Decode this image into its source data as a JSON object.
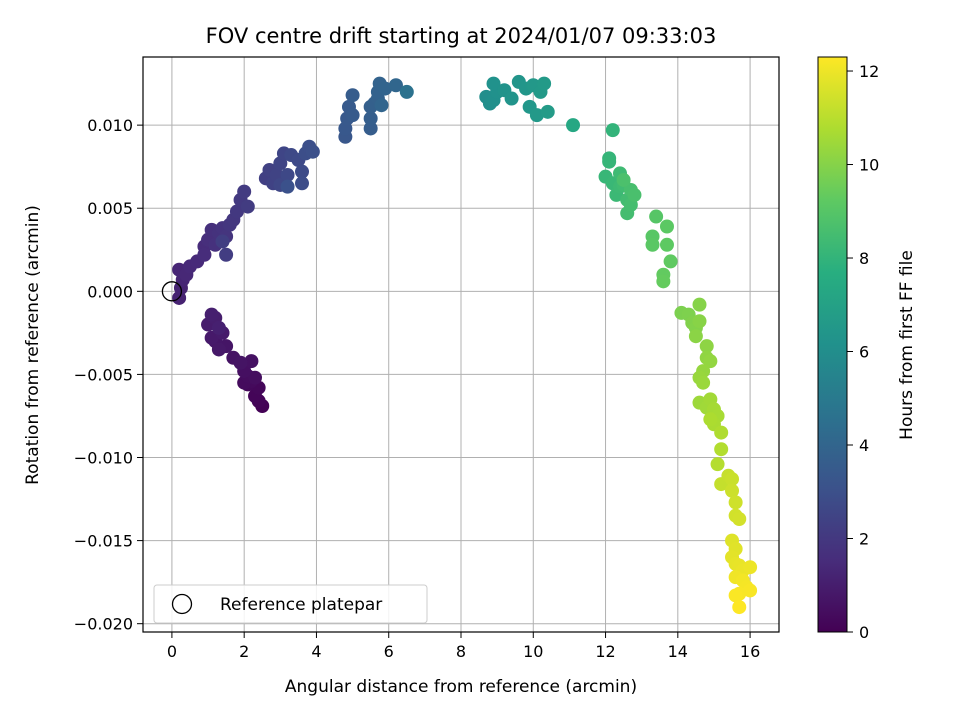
{
  "chart_data": {
    "type": "scatter",
    "title": "FOV centre drift starting at 2024/01/07 09:33:03",
    "xlabel": "Angular distance from reference (arcmin)",
    "ylabel": "Rotation from reference (arcmin)",
    "xlim": [
      -0.8,
      16.8
    ],
    "ylim": [
      -0.0205,
      0.0141
    ],
    "xticks": [
      0,
      2,
      4,
      6,
      8,
      10,
      12,
      14,
      16
    ],
    "xtick_labels": [
      "0",
      "2",
      "4",
      "6",
      "8",
      "10",
      "12",
      "14",
      "16"
    ],
    "yticks": [
      -0.02,
      -0.015,
      -0.01,
      -0.005,
      0.0,
      0.005,
      0.01
    ],
    "ytick_labels": [
      "−0.020",
      "−0.015",
      "−0.010",
      "−0.005",
      "0.000",
      "0.005",
      "0.010"
    ],
    "grid": true,
    "colormap": "viridis",
    "colorbar": {
      "label": "Hours from first FF file",
      "range": [
        0,
        12.3
      ],
      "ticks": [
        0,
        2,
        4,
        6,
        8,
        10,
        12
      ],
      "tick_labels": [
        "0",
        "2",
        "4",
        "6",
        "8",
        "10",
        "12"
      ]
    },
    "legend": {
      "position": "lower-left",
      "entries": [
        "Reference platepar"
      ]
    },
    "reference_point": {
      "x": 0.0,
      "y": 0.0
    },
    "points": [
      [
        2.5,
        -0.0069,
        0.05
      ],
      [
        2.4,
        -0.0066,
        0.1
      ],
      [
        2.3,
        -0.0063,
        0.15
      ],
      [
        2.4,
        -0.0058,
        0.2
      ],
      [
        2.1,
        -0.0056,
        0.25
      ],
      [
        2.2,
        -0.0054,
        0.3
      ],
      [
        2.0,
        -0.0055,
        0.35
      ],
      [
        2.1,
        -0.0051,
        0.4
      ],
      [
        2.3,
        -0.0052,
        0.45
      ],
      [
        2.0,
        -0.0048,
        0.5
      ],
      [
        2.2,
        -0.0042,
        0.55
      ],
      [
        1.7,
        -0.004,
        0.6
      ],
      [
        1.9,
        -0.0043,
        0.65
      ],
      [
        1.5,
        -0.0033,
        0.7
      ],
      [
        1.2,
        -0.003,
        0.75
      ],
      [
        1.3,
        -0.0035,
        0.8
      ],
      [
        1.1,
        -0.0028,
        0.85
      ],
      [
        1.4,
        -0.0025,
        0.9
      ],
      [
        1.0,
        -0.002,
        0.95
      ],
      [
        1.2,
        -0.0016,
        1.0
      ],
      [
        1.1,
        -0.0014,
        1.05
      ],
      [
        1.3,
        -0.0022,
        1.1
      ],
      [
        0.2,
        -0.0004,
        1.15
      ],
      [
        0.25,
        0.0002,
        1.2
      ],
      [
        0.3,
        0.0007,
        1.25
      ],
      [
        0.2,
        0.0013,
        1.3
      ],
      [
        0.4,
        0.001,
        1.35
      ],
      [
        0.5,
        0.0015,
        1.4
      ],
      [
        0.7,
        0.0018,
        1.45
      ],
      [
        0.9,
        0.0027,
        1.5
      ],
      [
        0.9,
        0.0022,
        1.55
      ],
      [
        1.0,
        0.0031,
        1.6
      ],
      [
        1.1,
        0.0037,
        1.65
      ],
      [
        1.2,
        0.0028,
        1.7
      ],
      [
        1.3,
        0.0035,
        1.75
      ],
      [
        1.4,
        0.0038,
        1.8
      ],
      [
        1.5,
        0.0033,
        1.85
      ],
      [
        1.6,
        0.004,
        1.9
      ],
      [
        1.7,
        0.0043,
        1.95
      ],
      [
        1.8,
        0.0048,
        2.0
      ],
      [
        1.9,
        0.0055,
        2.05
      ],
      [
        2.0,
        0.006,
        2.1
      ],
      [
        2.1,
        0.0051,
        2.15
      ],
      [
        1.5,
        0.0022,
        2.2
      ],
      [
        1.4,
        0.003,
        2.25
      ],
      [
        2.6,
        0.0068,
        2.3
      ],
      [
        2.7,
        0.0073,
        2.35
      ],
      [
        2.8,
        0.0065,
        2.4
      ],
      [
        2.9,
        0.007,
        2.45
      ],
      [
        3.0,
        0.0077,
        2.5
      ],
      [
        3.1,
        0.0083,
        2.55
      ],
      [
        3.0,
        0.0064,
        2.6
      ],
      [
        3.2,
        0.007,
        2.65
      ],
      [
        3.3,
        0.0082,
        2.7
      ],
      [
        3.5,
        0.0079,
        2.75
      ],
      [
        3.6,
        0.0072,
        2.8
      ],
      [
        3.6,
        0.0065,
        2.85
      ],
      [
        3.7,
        0.0083,
        2.9
      ],
      [
        3.8,
        0.0087,
        2.95
      ],
      [
        3.9,
        0.0084,
        3.0
      ],
      [
        3.2,
        0.0063,
        3.05
      ],
      [
        4.8,
        0.0093,
        3.3
      ],
      [
        4.8,
        0.0098,
        3.35
      ],
      [
        4.85,
        0.0104,
        3.4
      ],
      [
        4.9,
        0.0111,
        3.45
      ],
      [
        5.0,
        0.0106,
        3.5
      ],
      [
        5.0,
        0.0118,
        3.55
      ],
      [
        5.5,
        0.0098,
        3.6
      ],
      [
        5.5,
        0.0104,
        3.65
      ],
      [
        5.5,
        0.0111,
        3.7
      ],
      [
        5.6,
        0.0113,
        3.75
      ],
      [
        5.7,
        0.0116,
        3.8
      ],
      [
        5.7,
        0.012,
        3.85
      ],
      [
        5.75,
        0.0125,
        3.9
      ],
      [
        5.9,
        0.0122,
        3.95
      ],
      [
        5.8,
        0.0112,
        4.0
      ],
      [
        6.2,
        0.0124,
        4.05
      ],
      [
        6.5,
        0.012,
        4.6
      ],
      [
        8.7,
        0.0117,
        6.0
      ],
      [
        8.8,
        0.0113,
        6.05
      ],
      [
        8.9,
        0.0115,
        6.1
      ],
      [
        9.0,
        0.012,
        6.15
      ],
      [
        8.9,
        0.0125,
        6.2
      ],
      [
        9.2,
        0.0121,
        6.25
      ],
      [
        9.4,
        0.0116,
        6.3
      ],
      [
        9.6,
        0.0126,
        6.35
      ],
      [
        9.8,
        0.0122,
        6.4
      ],
      [
        9.9,
        0.0111,
        6.45
      ],
      [
        10.0,
        0.0124,
        6.5
      ],
      [
        10.1,
        0.0106,
        6.55
      ],
      [
        10.2,
        0.012,
        6.6
      ],
      [
        10.3,
        0.0125,
        6.65
      ],
      [
        10.4,
        0.0108,
        6.7
      ],
      [
        11.1,
        0.01,
        7.3
      ],
      [
        12.2,
        0.0097,
        8.0
      ],
      [
        12.1,
        0.008,
        8.05
      ],
      [
        12.1,
        0.0078,
        8.1
      ],
      [
        12.0,
        0.0069,
        8.15
      ],
      [
        12.2,
        0.0065,
        8.2
      ],
      [
        12.3,
        0.0058,
        8.25
      ],
      [
        12.4,
        0.0063,
        8.3
      ],
      [
        12.4,
        0.0071,
        8.35
      ],
      [
        12.5,
        0.0064,
        8.4
      ],
      [
        12.6,
        0.0055,
        8.45
      ],
      [
        12.6,
        0.0047,
        8.5
      ],
      [
        12.7,
        0.0052,
        8.55
      ],
      [
        12.7,
        0.0061,
        8.6
      ],
      [
        12.8,
        0.0058,
        8.65
      ],
      [
        12.5,
        0.0067,
        8.7
      ],
      [
        13.4,
        0.0045,
        9.0
      ],
      [
        13.3,
        0.0033,
        9.05
      ],
      [
        13.3,
        0.0028,
        9.1
      ],
      [
        13.7,
        0.0039,
        9.15
      ],
      [
        13.7,
        0.0028,
        9.2
      ],
      [
        13.8,
        0.0018,
        9.25
      ],
      [
        13.6,
        0.001,
        9.3
      ],
      [
        13.6,
        0.0006,
        9.35
      ],
      [
        14.1,
        -0.0013,
        9.8
      ],
      [
        14.3,
        -0.0014,
        9.85
      ],
      [
        14.4,
        -0.0019,
        9.9
      ],
      [
        14.5,
        -0.0022,
        9.95
      ],
      [
        14.6,
        -0.0008,
        10.0
      ],
      [
        14.6,
        -0.0018,
        10.05
      ],
      [
        14.5,
        -0.0027,
        10.1
      ],
      [
        14.8,
        -0.0033,
        10.15
      ],
      [
        14.8,
        -0.004,
        10.2
      ],
      [
        14.9,
        -0.0042,
        10.25
      ],
      [
        14.7,
        -0.0048,
        10.3
      ],
      [
        14.6,
        -0.0052,
        10.35
      ],
      [
        14.7,
        -0.0055,
        10.4
      ],
      [
        14.6,
        -0.0067,
        10.45
      ],
      [
        14.8,
        -0.007,
        10.5
      ],
      [
        14.9,
        -0.0065,
        10.55
      ],
      [
        15.0,
        -0.0071,
        10.6
      ],
      [
        15.1,
        -0.0075,
        10.65
      ],
      [
        15.0,
        -0.008,
        10.7
      ],
      [
        14.9,
        -0.0077,
        10.75
      ],
      [
        15.2,
        -0.0085,
        10.8
      ],
      [
        15.2,
        -0.0095,
        10.85
      ],
      [
        15.1,
        -0.0104,
        10.9
      ],
      [
        15.2,
        -0.0116,
        11.2
      ],
      [
        15.4,
        -0.0111,
        11.25
      ],
      [
        15.5,
        -0.0113,
        11.3
      ],
      [
        15.5,
        -0.012,
        11.35
      ],
      [
        15.6,
        -0.0127,
        11.4
      ],
      [
        15.6,
        -0.0135,
        11.45
      ],
      [
        15.7,
        -0.0137,
        11.5
      ],
      [
        15.5,
        -0.015,
        11.7
      ],
      [
        15.6,
        -0.0155,
        11.75
      ],
      [
        15.5,
        -0.016,
        11.8
      ],
      [
        15.6,
        -0.0164,
        11.85
      ],
      [
        15.7,
        -0.0165,
        11.9
      ],
      [
        15.8,
        -0.0168,
        11.95
      ],
      [
        16.0,
        -0.0166,
        12.0
      ],
      [
        15.6,
        -0.0172,
        12.05
      ],
      [
        15.8,
        -0.0174,
        12.1
      ],
      [
        15.9,
        -0.0178,
        12.15
      ],
      [
        15.7,
        -0.0182,
        12.2
      ],
      [
        15.6,
        -0.0183,
        12.25
      ],
      [
        15.7,
        -0.019,
        12.3
      ],
      [
        16.0,
        -0.018,
        12.2
      ]
    ]
  }
}
